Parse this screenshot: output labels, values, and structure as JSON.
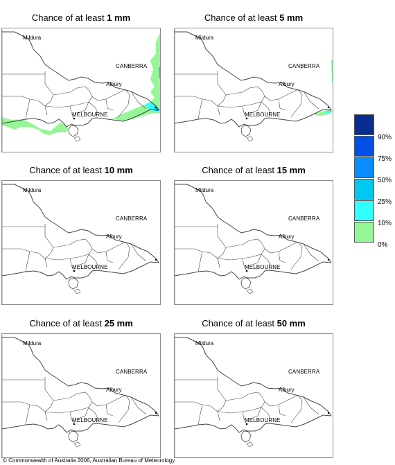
{
  "colors": {
    "c10": "#96f596",
    "c25": "#32ffff",
    "c50": "#00c8f0",
    "c75": "#0a8cff",
    "c90": "#0050e6",
    "c100": "#0a2d91",
    "line": "#444444"
  },
  "panels": [
    {
      "prefix": "Chance of at least ",
      "amount": "1 mm",
      "shading": "1mm"
    },
    {
      "prefix": "Chance of at least ",
      "amount": "5 mm",
      "shading": "5mm"
    },
    {
      "prefix": "Chance of at least ",
      "amount": "10 mm",
      "shading": "none"
    },
    {
      "prefix": "Chance of at least ",
      "amount": "15 mm",
      "shading": "none"
    },
    {
      "prefix": "Chance of at least ",
      "amount": "25 mm",
      "shading": "none"
    },
    {
      "prefix": "Chance of at least ",
      "amount": "50 mm",
      "shading": "none"
    }
  ],
  "places": {
    "mildura": "Mildura",
    "canberra": "CANBERRA",
    "albury": "Albury",
    "melbourne": "MELBOURNE"
  },
  "legend": {
    "labels": [
      "90%",
      "75%",
      "50%",
      "25%",
      "10%",
      "0%"
    ],
    "swatches": [
      "#0a2d91",
      "#0050e6",
      "#0a8cff",
      "#00c8f0",
      "#32ffff",
      "#96f596",
      "#ffffff"
    ]
  },
  "copyright": "© Commonwealth of Australia 2006, Australian Bureau of Meteorology"
}
